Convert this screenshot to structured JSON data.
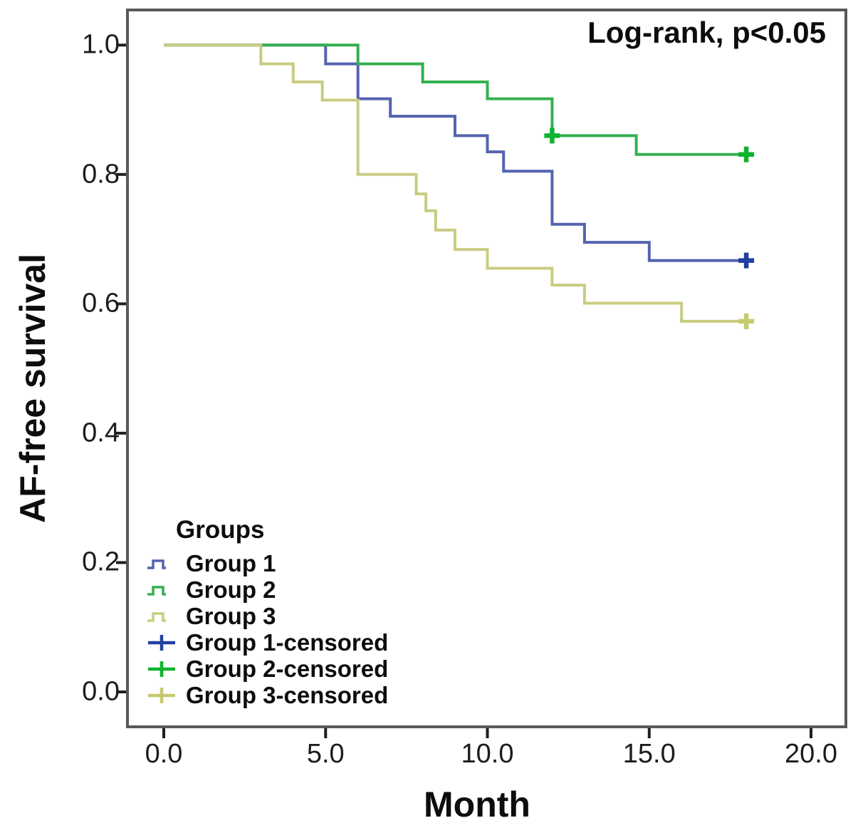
{
  "chart_data": {
    "type": "line",
    "subtype": "kaplan-meier-step",
    "annotation": "Log-rank, p<0.05",
    "xlabel": "Month",
    "ylabel": "AF-free survival",
    "xlim": [
      -1.1,
      21.1
    ],
    "ylim": [
      -0.054,
      1.054
    ],
    "grid": false,
    "legend_position": "inside-bottom-left",
    "x_ticks": [
      {
        "value": 0,
        "label": "0.0"
      },
      {
        "value": 5,
        "label": "5.0"
      },
      {
        "value": 10,
        "label": "10.0"
      },
      {
        "value": 15,
        "label": "15.0"
      },
      {
        "value": 20,
        "label": "20.0"
      }
    ],
    "y_ticks": [
      {
        "value": 1.0,
        "label": "1.0"
      },
      {
        "value": 0.8,
        "label": "0.8"
      },
      {
        "value": 0.6,
        "label": "0.6"
      },
      {
        "value": 0.4,
        "label": "0.4"
      },
      {
        "value": 0.2,
        "label": "0.2"
      },
      {
        "value": 0.0,
        "label": "0.0"
      }
    ],
    "frame_color": "#59595b",
    "tick_color": "#1f1f1f",
    "series": [
      {
        "name": "Group 1",
        "color": "#5563b0",
        "censor_color": "#203fa0",
        "points": [
          [
            0,
            1.0
          ],
          [
            5,
            1.0
          ],
          [
            5,
            0.971
          ],
          [
            6,
            0.971
          ],
          [
            6,
            0.917
          ],
          [
            7,
            0.917
          ],
          [
            7,
            0.89
          ],
          [
            9,
            0.89
          ],
          [
            9,
            0.86
          ],
          [
            10,
            0.86
          ],
          [
            10,
            0.835
          ],
          [
            10.5,
            0.835
          ],
          [
            10.5,
            0.805
          ],
          [
            12,
            0.805
          ],
          [
            12,
            0.723
          ],
          [
            13,
            0.723
          ],
          [
            13,
            0.695
          ],
          [
            15,
            0.695
          ],
          [
            15,
            0.667
          ],
          [
            18,
            0.667
          ]
        ],
        "censored": [
          [
            18,
            0.667
          ]
        ]
      },
      {
        "name": "Group 2",
        "color": "#34b04f",
        "censor_color": "#0db32f",
        "points": [
          [
            0,
            1.0
          ],
          [
            6,
            1.0
          ],
          [
            6,
            0.971
          ],
          [
            8,
            0.971
          ],
          [
            8,
            0.943
          ],
          [
            10,
            0.943
          ],
          [
            10,
            0.917
          ],
          [
            12,
            0.917
          ],
          [
            12,
            0.86
          ],
          [
            14.6,
            0.86
          ],
          [
            14.6,
            0.831
          ],
          [
            18,
            0.831
          ]
        ],
        "censored": [
          [
            12,
            0.86
          ],
          [
            18,
            0.831
          ]
        ]
      },
      {
        "name": "Group 3",
        "color": "#c9cc81",
        "censor_color": "#c6ca6e",
        "points": [
          [
            0,
            1.0
          ],
          [
            3,
            1.0
          ],
          [
            3,
            0.971
          ],
          [
            4,
            0.971
          ],
          [
            4,
            0.943
          ],
          [
            4.9,
            0.943
          ],
          [
            4.9,
            0.915
          ],
          [
            6,
            0.915
          ],
          [
            6,
            0.8
          ],
          [
            7.8,
            0.8
          ],
          [
            7.8,
            0.77
          ],
          [
            8.1,
            0.77
          ],
          [
            8.1,
            0.744
          ],
          [
            8.4,
            0.744
          ],
          [
            8.4,
            0.714
          ],
          [
            9,
            0.714
          ],
          [
            9,
            0.684
          ],
          [
            10,
            0.684
          ],
          [
            10,
            0.655
          ],
          [
            12,
            0.655
          ],
          [
            12,
            0.629
          ],
          [
            13,
            0.629
          ],
          [
            13,
            0.601
          ],
          [
            16,
            0.601
          ],
          [
            16,
            0.573
          ],
          [
            18,
            0.573
          ]
        ],
        "censored": [
          [
            18,
            0.573
          ]
        ]
      }
    ],
    "legend": {
      "title": "Groups",
      "items": [
        {
          "label": "Group 1",
          "color": "#5563b0",
          "glyph": "step"
        },
        {
          "label": "Group 2",
          "color": "#34b04f",
          "glyph": "step"
        },
        {
          "label": "Group 3",
          "color": "#c9cc81",
          "glyph": "step"
        },
        {
          "label": "Group 1-censored",
          "color": "#203fa0",
          "glyph": "plus"
        },
        {
          "label": "Group 2-censored",
          "color": "#0db32f",
          "glyph": "plus"
        },
        {
          "label": "Group 3-censored",
          "color": "#c6ca6e",
          "glyph": "plus"
        }
      ]
    }
  }
}
